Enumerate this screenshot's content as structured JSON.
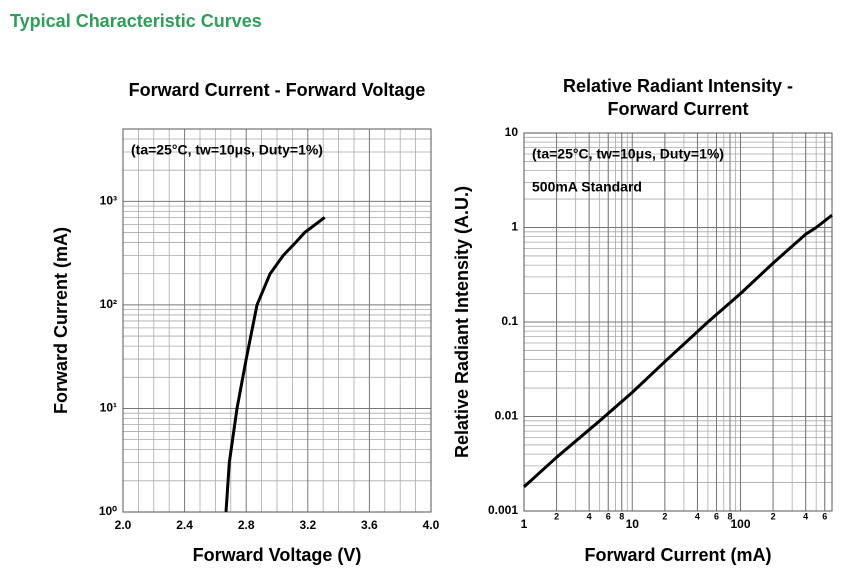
{
  "page_title": "Typical Characteristic Curves",
  "chart_data": [
    {
      "type": "line",
      "title": "Forward Current - Forward Voltage",
      "annotations": [
        "(ta=25°C, tw=10μs, Duty=1%)"
      ],
      "x_label": "Forward Voltage (V)",
      "y_label": "Forward Current (mA)",
      "x": [
        2.669,
        2.69,
        2.74,
        2.8,
        2.83,
        2.87,
        2.955,
        3.04,
        3.12,
        3.18,
        3.31
      ],
      "values": [
        1,
        3,
        10,
        30,
        50,
        100,
        200,
        300,
        400,
        500,
        700
      ],
      "color": "#000000",
      "xlim": [
        2.0,
        4.0
      ],
      "xticks": [
        {
          "value": 2.0,
          "label": "2.0"
        },
        2.4,
        2.8,
        3.2,
        3.6,
        {
          "value": 4.0,
          "label": "4.0"
        }
      ],
      "ylim": [
        1,
        5000
      ],
      "ylog": true,
      "yticks": [
        {
          "value": 1,
          "label": "10⁰"
        },
        {
          "value": 10,
          "label": "10¹"
        },
        {
          "value": 100,
          "label": "10²"
        },
        {
          "value": 1000,
          "label": "10³"
        }
      ],
      "grid": true
    },
    {
      "type": "line",
      "title": [
        "Relative Radiant Intensity -",
        "Forward Current"
      ],
      "annotations": [
        "(ta=25°C, tw=10μs, Duty=1%)",
        "500mA Standard"
      ],
      "x_label": "Forward Current (mA)",
      "y_label": "Relative Radiant Intensity (A.U.)",
      "x": [
        1,
        2,
        5,
        10,
        20,
        50,
        100,
        200,
        400,
        500,
        700
      ],
      "values": [
        0.0018,
        0.0037,
        0.009,
        0.018,
        0.038,
        0.1,
        0.2,
        0.42,
        0.85,
        1.0,
        1.35
      ],
      "color": "#000000",
      "xlim": [
        1,
        700
      ],
      "xlog": true,
      "xticks": [
        1,
        2,
        4,
        6,
        8,
        10,
        {
          "value": 20,
          "label": "2"
        },
        {
          "value": 40,
          "label": "4"
        },
        {
          "value": 60,
          "label": "6"
        },
        {
          "value": 80,
          "label": "8"
        },
        100,
        {
          "value": 200,
          "label": "2"
        },
        {
          "value": 400,
          "label": "4"
        },
        {
          "value": 600,
          "label": "6"
        }
      ],
      "ylim": [
        0.001,
        10
      ],
      "ylog": true,
      "yticks": [
        0.001,
        0.01,
        0.1,
        1,
        10
      ],
      "grid": true
    }
  ]
}
